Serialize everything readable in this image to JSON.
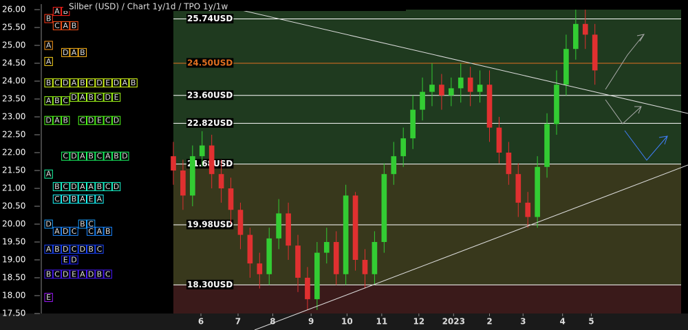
{
  "chart_data": {
    "type": "candlestick",
    "title": "Silber (USD) /  Chart 1y/1d / TPO 1y/1w",
    "x": [
      0,
      8,
      16,
      24,
      32,
      40,
      48,
      56,
      64,
      72,
      80,
      88,
      96,
      104,
      112,
      120,
      128,
      136,
      144,
      152,
      160,
      168,
      176,
      184,
      192,
      200,
      208,
      216,
      224,
      232,
      240,
      248,
      256,
      264,
      272,
      280,
      288,
      296,
      304,
      312,
      320,
      328,
      336,
      344,
      352
    ],
    "open": [
      21.9,
      21.5,
      20.8,
      21.9,
      22.2,
      21.4,
      21.0,
      20.4,
      19.7,
      18.9,
      18.6,
      19.6,
      20.3,
      19.4,
      18.5,
      17.9,
      19.2,
      19.5,
      18.6,
      20.8,
      19.0,
      18.6,
      19.5,
      21.4,
      21.9,
      22.4,
      23.2,
      23.7,
      23.9,
      23.6,
      23.8,
      24.1,
      23.7,
      23.9,
      22.7,
      22.0,
      21.4,
      20.6,
      20.2,
      21.6,
      22.8,
      23.9,
      24.9,
      25.6,
      25.3
    ],
    "high": [
      22.3,
      21.8,
      22.2,
      22.6,
      22.5,
      21.8,
      21.3,
      20.6,
      19.9,
      19.2,
      19.9,
      20.7,
      20.6,
      19.7,
      18.8,
      19.5,
      19.9,
      19.8,
      21.1,
      20.9,
      19.3,
      19.8,
      21.7,
      22.3,
      22.7,
      23.6,
      24.1,
      24.5,
      24.2,
      24.1,
      24.5,
      24.4,
      24.3,
      24.3,
      23.0,
      22.3,
      21.7,
      20.9,
      21.9,
      23.1,
      24.3,
      25.3,
      26.0,
      26.0,
      25.6
    ],
    "low": [
      21.1,
      20.4,
      20.5,
      21.6,
      21.0,
      20.6,
      20.0,
      19.3,
      18.5,
      18.2,
      18.3,
      19.3,
      19.0,
      18.1,
      17.6,
      17.6,
      18.9,
      18.3,
      18.3,
      18.7,
      18.2,
      18.3,
      19.2,
      21.1,
      21.6,
      22.1,
      22.9,
      23.3,
      23.2,
      23.3,
      23.4,
      23.3,
      23.4,
      22.3,
      21.7,
      21.1,
      20.2,
      19.9,
      19.9,
      21.3,
      22.5,
      23.6,
      24.6,
      24.9,
      23.9
    ],
    "close": [
      21.5,
      20.8,
      21.9,
      22.2,
      21.4,
      21.0,
      20.4,
      19.7,
      18.9,
      18.6,
      19.6,
      20.3,
      19.4,
      18.5,
      17.9,
      19.2,
      19.5,
      18.6,
      20.8,
      19.0,
      18.6,
      19.5,
      21.4,
      21.9,
      22.4,
      23.2,
      23.7,
      23.9,
      23.6,
      23.8,
      24.1,
      23.7,
      23.9,
      22.7,
      22.0,
      21.4,
      20.6,
      20.2,
      21.6,
      22.8,
      23.9,
      24.9,
      25.6,
      25.3,
      24.3
    ],
    "up_color": "#33cc33",
    "down_color": "#e03030",
    "xlim": [
      0,
      424
    ],
    "xticks": [
      {
        "value": 23,
        "label": "6"
      },
      {
        "value": 54,
        "label": "7"
      },
      {
        "value": 83,
        "label": "8"
      },
      {
        "value": 115,
        "label": "9"
      },
      {
        "value": 145,
        "label": "10"
      },
      {
        "value": 174,
        "label": "11"
      },
      {
        "value": 205,
        "label": "12"
      },
      {
        "value": 234,
        "label": "2023"
      },
      {
        "value": 264,
        "label": "2"
      },
      {
        "value": 292,
        "label": "3"
      },
      {
        "value": 325,
        "label": "4"
      },
      {
        "value": 349,
        "label": "5"
      }
    ],
    "ylim": [
      17.5,
      26
    ],
    "yticks": [
      {
        "value": 26,
        "label": "26.00"
      },
      {
        "value": 25.5,
        "label": "25.50"
      },
      {
        "value": 25,
        "label": "25.00"
      },
      {
        "value": 24.5,
        "label": "24.50"
      },
      {
        "value": 24,
        "label": "24.00"
      },
      {
        "value": 23.5,
        "label": "23.50"
      },
      {
        "value": 23,
        "label": "23.00"
      },
      {
        "value": 22.5,
        "label": "22.50"
      },
      {
        "value": 22,
        "label": "22.00"
      },
      {
        "value": 21.5,
        "label": "21.50"
      },
      {
        "value": 21,
        "label": "21.00"
      },
      {
        "value": 20.5,
        "label": "20.50"
      },
      {
        "value": 20,
        "label": "20.00"
      },
      {
        "value": 19.5,
        "label": "19.50"
      },
      {
        "value": 19,
        "label": "19.00"
      },
      {
        "value": 18.5,
        "label": "18.50"
      },
      {
        "value": 18,
        "label": "18.00"
      },
      {
        "value": 17.5,
        "label": "17.50"
      }
    ],
    "zones": [
      {
        "low": 21.68,
        "high": 26,
        "color": "#1f3a1f"
      },
      {
        "low": 18.3,
        "high": 21.68,
        "color": "#38381c"
      },
      {
        "low": 17.5,
        "high": 18.3,
        "color": "#3a1a1a"
      }
    ],
    "levels": [
      {
        "value": 25.74,
        "label": "25.74USD",
        "color": "#ffffff"
      },
      {
        "value": 24.5,
        "label": "24.50USD",
        "color": "#e07020"
      },
      {
        "value": 23.6,
        "label": "23.60USD",
        "color": "#ffffff"
      },
      {
        "value": 22.82,
        "label": "22.82USD",
        "color": "#ffffff"
      },
      {
        "value": 21.68,
        "label": "21.68USD",
        "color": "#ffffff"
      },
      {
        "value": 19.98,
        "label": "19.98USD",
        "color": "#ffffff"
      },
      {
        "value": 18.3,
        "label": "18.30USD",
        "color": "#ffffff"
      }
    ],
    "tpo": [
      {
        "price": 25.95,
        "letters": [
          null,
          "A",
          "B"
        ]
      },
      {
        "price": 25.75,
        "letters": [
          "B"
        ]
      },
      {
        "price": 25.55,
        "letters": [
          null,
          "C",
          "A",
          "B"
        ]
      },
      {
        "price": 25.0,
        "letters": [
          "A"
        ]
      },
      {
        "price": 24.8,
        "letters": [
          null,
          null,
          "D",
          "A",
          "B"
        ]
      },
      {
        "price": 24.55,
        "letters": [
          "A"
        ]
      },
      {
        "price": 23.95,
        "letters": [
          "B",
          "C",
          "D",
          "A",
          "B",
          "C",
          "D",
          "E",
          "D",
          "A",
          "B"
        ]
      },
      {
        "price": 23.55,
        "letters": [
          null,
          null,
          null,
          "D",
          "A",
          "B",
          "C",
          "D",
          "E"
        ]
      },
      {
        "price": 23.45,
        "letters": [
          "A",
          "B",
          "C"
        ]
      },
      {
        "price": 22.9,
        "letters": [
          "D",
          "A",
          "B",
          null,
          "C",
          "D",
          "E",
          "C",
          "D"
        ]
      },
      {
        "price": 21.9,
        "letters": [
          null,
          null,
          "C",
          "D",
          "A",
          "B",
          "C",
          "A",
          "B",
          "D"
        ]
      },
      {
        "price": 21.4,
        "letters": [
          "A"
        ]
      },
      {
        "price": 21.05,
        "letters": [
          null,
          "B",
          "C",
          "D",
          "A",
          "A",
          "B",
          "C",
          "D"
        ]
      },
      {
        "price": 20.7,
        "letters": [
          null,
          "C",
          "D",
          "B",
          "A",
          "E",
          "A"
        ]
      },
      {
        "price": 20.0,
        "letters": [
          "D",
          null,
          null,
          null,
          "B",
          "C"
        ]
      },
      {
        "price": 19.8,
        "letters": [
          null,
          "A",
          "D",
          "C",
          null,
          "C",
          "A",
          "B"
        ]
      },
      {
        "price": 19.3,
        "letters": [
          "A",
          "B",
          "D",
          "C",
          "D",
          "B",
          "C"
        ]
      },
      {
        "price": 19.0,
        "letters": [
          null,
          null,
          "E",
          "D"
        ]
      },
      {
        "price": 18.6,
        "letters": [
          "B",
          "C",
          "D",
          "E",
          "A",
          "D",
          "B",
          "C"
        ]
      },
      {
        "price": 17.95,
        "letters": [
          "E"
        ]
      }
    ]
  }
}
